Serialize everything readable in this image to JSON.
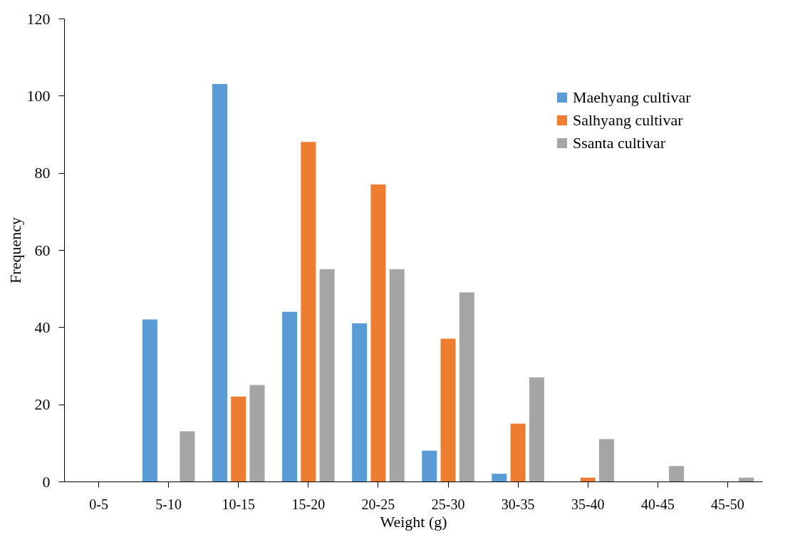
{
  "chart_data": {
    "type": "bar",
    "xlabel": "Weight (g)",
    "ylabel": "Frequency",
    "categories": [
      "0-5",
      "5-10",
      "10-15",
      "15-20",
      "20-25",
      "25-30",
      "30-35",
      "35-40",
      "40-45",
      "45-50"
    ],
    "series": [
      {
        "name": "Maehyang cultivar",
        "color": "#5b9bd5",
        "values": [
          0,
          42,
          103,
          44,
          41,
          8,
          2,
          0,
          0,
          0
        ]
      },
      {
        "name": "Salhyang cultivar",
        "color": "#ed7d31",
        "values": [
          0,
          0,
          22,
          88,
          77,
          37,
          15,
          1,
          0,
          0
        ]
      },
      {
        "name": "Ssanta cultivar",
        "color": "#a5a5a5",
        "values": [
          0,
          13,
          25,
          55,
          55,
          49,
          27,
          11,
          4,
          1
        ]
      }
    ],
    "ylim": [
      0,
      120
    ],
    "yticks": [
      0,
      20,
      40,
      60,
      80,
      100,
      120
    ],
    "grid": false,
    "legend": "top right"
  }
}
